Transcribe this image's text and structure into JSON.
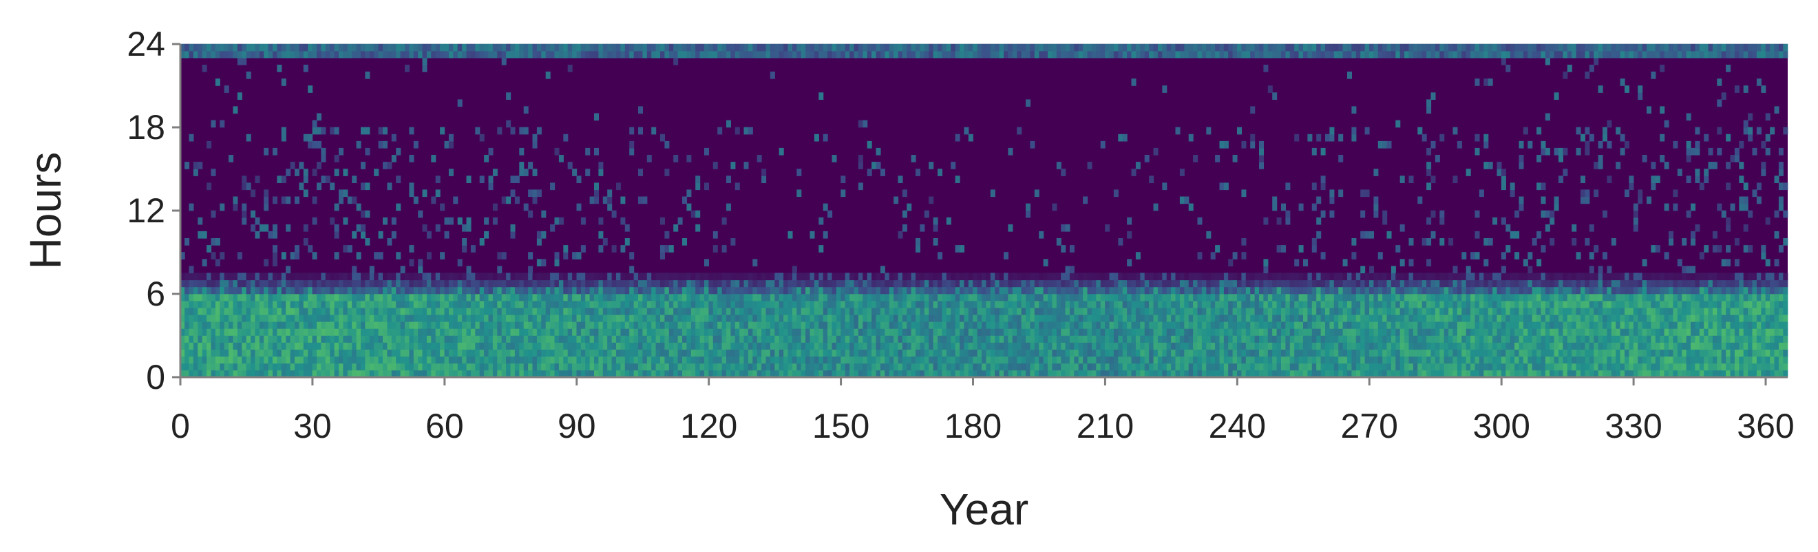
{
  "chart_data": {
    "type": "heatmap",
    "title": "",
    "xlabel": "Year",
    "ylabel": "Hours",
    "xlim": [
      0,
      365
    ],
    "ylim": [
      0,
      24
    ],
    "x_ticks": [
      0,
      30,
      60,
      90,
      120,
      150,
      180,
      210,
      240,
      270,
      300,
      330,
      360
    ],
    "y_ticks": [
      0,
      6,
      12,
      18,
      24
    ],
    "grid": false,
    "legend": "none",
    "colormap": [
      "#440154",
      "#3b528b",
      "#21918c",
      "#5ec962",
      "#fde725"
    ],
    "hour_bands": [
      {
        "hours": [
          0,
          6
        ],
        "intensity": 0.55,
        "description_level": "high"
      },
      {
        "hours": [
          6,
          7.5
        ],
        "intensity": 0.3,
        "description_level": "transition"
      },
      {
        "hours": [
          7.5,
          23
        ],
        "intensity": 0.0,
        "description_level": "low"
      },
      {
        "hours": [
          23,
          24
        ],
        "intensity": 0.35,
        "description_level": "medium"
      }
    ]
  }
}
